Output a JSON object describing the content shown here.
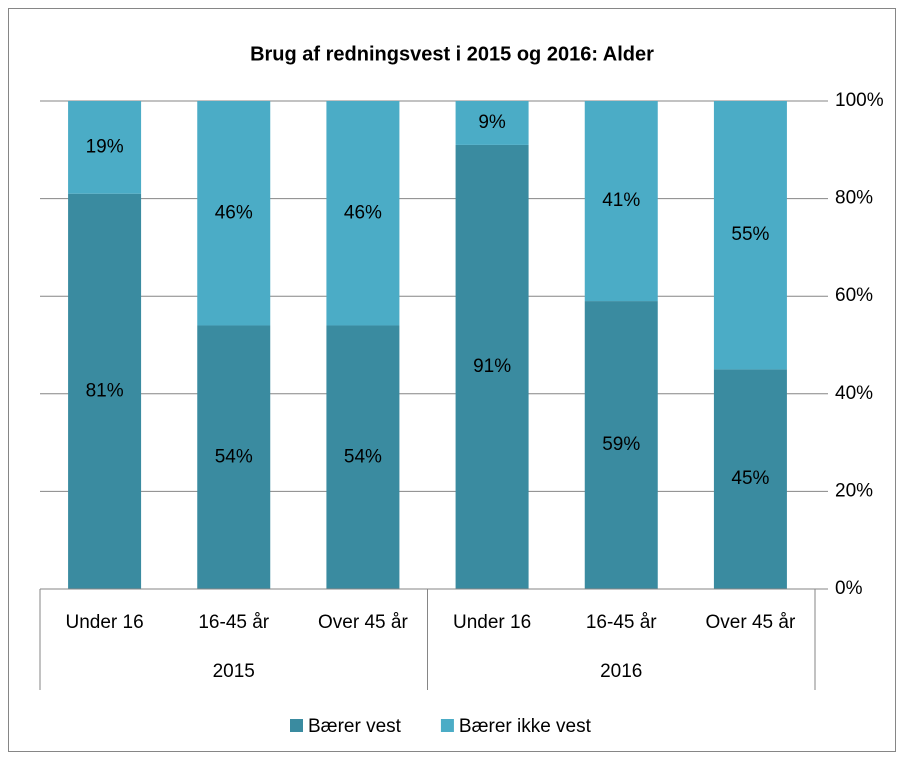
{
  "chart_data": {
    "type": "stacked_bar",
    "title": "Brug af redningsvest i 2015 og 2016: Alder",
    "categories": [
      "Under 16",
      "16-45 år",
      "Over 45 år",
      "Under 16",
      "16-45 år",
      "Over 45 år"
    ],
    "groups": [
      "2015",
      "2016"
    ],
    "series": [
      {
        "name": "Bærer vest",
        "color": "#3a8ba0",
        "values": [
          81,
          54,
          54,
          91,
          59,
          45
        ],
        "value_labels": [
          "81%",
          "54%",
          "54%",
          "91%",
          "59%",
          "45%"
        ]
      },
      {
        "name": "Bærer ikke vest",
        "color": "#4bacc6",
        "values": [
          19,
          46,
          46,
          9,
          41,
          55
        ],
        "value_labels": [
          "19%",
          "46%",
          "46%",
          "9%",
          "41%",
          "55%"
        ]
      }
    ],
    "ylim": [
      0,
      100
    ],
    "yticks": [
      {
        "value": 0,
        "label": "0%"
      },
      {
        "value": 20,
        "label": "20%"
      },
      {
        "value": 40,
        "label": "40%"
      },
      {
        "value": 60,
        "label": "60%"
      },
      {
        "value": 80,
        "label": "80%"
      },
      {
        "value": 100,
        "label": "100%"
      }
    ],
    "grid": true,
    "legend": "bottom"
  }
}
